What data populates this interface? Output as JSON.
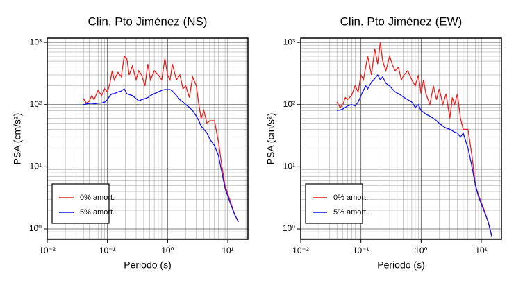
{
  "chart_data": [
    {
      "type": "line",
      "title": "Clin. Pto Jiménez (NS)",
      "x_label": "Periodo (s)",
      "y_label": "PSA (cm/s²)",
      "xscale": "log",
      "yscale": "log",
      "grid": true,
      "legend": "lower left",
      "xlim": [
        0.01,
        21.6
      ],
      "ylim": [
        0.68,
        1170
      ],
      "xticks": [
        {
          "value": 0.01,
          "label": "10⁻²"
        },
        {
          "value": 0.1,
          "label": "10⁻¹"
        },
        {
          "value": 1,
          "label": "10⁰"
        },
        {
          "value": 10,
          "label": "10¹"
        }
      ],
      "yticks": [
        {
          "value": 1,
          "label": "10⁰"
        },
        {
          "value": 10,
          "label": "10¹"
        },
        {
          "value": 100,
          "label": "10²"
        },
        {
          "value": 1000,
          "label": "10³"
        }
      ],
      "xticks_minor": [
        0.02,
        0.03,
        0.04,
        0.05,
        0.06,
        0.07,
        0.08,
        0.09,
        0.2,
        0.3,
        0.4,
        0.5,
        0.6,
        0.7,
        0.8,
        0.9,
        2,
        3,
        4,
        5,
        6,
        7,
        8,
        9,
        20
      ],
      "yticks_minor": [
        0.7,
        0.8,
        0.9,
        2,
        3,
        4,
        5,
        6,
        7,
        8,
        9,
        20,
        30,
        40,
        50,
        60,
        70,
        80,
        90,
        200,
        300,
        400,
        500,
        600,
        700,
        800,
        900
      ],
      "x": [
        0.04,
        0.045,
        0.05,
        0.055,
        0.06,
        0.07,
        0.08,
        0.09,
        0.1,
        0.11,
        0.12,
        0.13,
        0.15,
        0.17,
        0.19,
        0.21,
        0.23,
        0.26,
        0.3,
        0.33,
        0.37,
        0.42,
        0.47,
        0.52,
        0.6,
        0.7,
        0.8,
        0.9,
        1.0,
        1.1,
        1.2,
        1.4,
        1.6,
        1.8,
        2.0,
        2.3,
        2.6,
        3.0,
        3.3,
        3.6,
        4.0,
        4.5,
        5.0,
        6.0,
        7.0,
        8.0,
        9.0,
        11,
        13,
        15
      ],
      "series": [
        {
          "name": "0% amort.",
          "color": "#ee1c1c",
          "values": [
            125,
            105,
            115,
            140,
            120,
            170,
            140,
            180,
            160,
            220,
            350,
            250,
            330,
            280,
            600,
            550,
            300,
            420,
            250,
            350,
            300,
            200,
            450,
            250,
            350,
            300,
            250,
            550,
            300,
            250,
            450,
            250,
            300,
            180,
            200,
            130,
            280,
            200,
            100,
            60,
            80,
            50,
            55,
            55,
            25,
            10,
            5,
            2.8,
            1.7,
            1.3
          ]
        },
        {
          "name": "5% amort.",
          "color": "#1010ee",
          "values": [
            100,
            103,
            104,
            105,
            103,
            105,
            106,
            110,
            120,
            140,
            150,
            150,
            160,
            165,
            180,
            150,
            145,
            140,
            125,
            115,
            120,
            125,
            130,
            140,
            150,
            160,
            170,
            175,
            175,
            175,
            165,
            140,
            120,
            110,
            100,
            90,
            80,
            65,
            55,
            45,
            40,
            35,
            28,
            22,
            15,
            8,
            4.5,
            2.6,
            1.7,
            1.3
          ]
        }
      ]
    },
    {
      "type": "line",
      "title": "Clin. Pto Jiménez (EW)",
      "x_label": "Periodo (s)",
      "y_label": "PSA (cm/s²)",
      "xscale": "log",
      "yscale": "log",
      "grid": true,
      "legend": "lower left",
      "xlim": [
        0.01,
        21.6
      ],
      "ylim": [
        0.68,
        1170
      ],
      "xticks": [
        {
          "value": 0.01,
          "label": "10⁻²"
        },
        {
          "value": 0.1,
          "label": "10⁻¹"
        },
        {
          "value": 1,
          "label": "10⁰"
        },
        {
          "value": 10,
          "label": "10¹"
        }
      ],
      "yticks": [
        {
          "value": 1,
          "label": "10⁰"
        },
        {
          "value": 10,
          "label": "10¹"
        },
        {
          "value": 100,
          "label": "10²"
        },
        {
          "value": 1000,
          "label": "10³"
        }
      ],
      "xticks_minor": [
        0.02,
        0.03,
        0.04,
        0.05,
        0.06,
        0.07,
        0.08,
        0.09,
        0.2,
        0.3,
        0.4,
        0.5,
        0.6,
        0.7,
        0.8,
        0.9,
        2,
        3,
        4,
        5,
        6,
        7,
        8,
        9,
        20
      ],
      "yticks_minor": [
        0.7,
        0.8,
        0.9,
        2,
        3,
        4,
        5,
        6,
        7,
        8,
        9,
        20,
        30,
        40,
        50,
        60,
        70,
        80,
        90,
        200,
        300,
        400,
        500,
        600,
        700,
        800,
        900
      ],
      "x": [
        0.04,
        0.045,
        0.05,
        0.055,
        0.06,
        0.07,
        0.08,
        0.09,
        0.1,
        0.11,
        0.12,
        0.13,
        0.15,
        0.17,
        0.19,
        0.21,
        0.23,
        0.26,
        0.3,
        0.33,
        0.37,
        0.42,
        0.47,
        0.52,
        0.6,
        0.7,
        0.8,
        0.9,
        1.0,
        1.1,
        1.2,
        1.4,
        1.6,
        1.8,
        2.0,
        2.3,
        2.6,
        3.0,
        3.3,
        3.6,
        4.0,
        4.5,
        5.0,
        6.0,
        7.0,
        8.0,
        9.0,
        11,
        13,
        15
      ],
      "series": [
        {
          "name": "0% amort.",
          "color": "#ee1c1c",
          "values": [
            110,
            90,
            100,
            130,
            120,
            140,
            200,
            160,
            300,
            250,
            400,
            600,
            300,
            800,
            450,
            1000,
            500,
            350,
            600,
            450,
            350,
            400,
            250,
            300,
            350,
            250,
            200,
            300,
            150,
            250,
            150,
            100,
            200,
            120,
            180,
            100,
            150,
            60,
            130,
            100,
            150,
            60,
            40,
            40,
            15,
            5,
            3.5,
            2.1,
            1.3,
            0.75
          ]
        },
        {
          "name": "5% amort.",
          "color": "#1010ee",
          "values": [
            80,
            82,
            85,
            90,
            95,
            100,
            95,
            110,
            140,
            170,
            200,
            180,
            230,
            260,
            300,
            250,
            280,
            220,
            200,
            180,
            160,
            150,
            140,
            130,
            120,
            110,
            90,
            100,
            80,
            75,
            70,
            65,
            60,
            55,
            50,
            45,
            42,
            40,
            38,
            36,
            35,
            30,
            35,
            20,
            10,
            5,
            3.3,
            2.0,
            1.3,
            0.75
          ]
        }
      ]
    }
  ]
}
